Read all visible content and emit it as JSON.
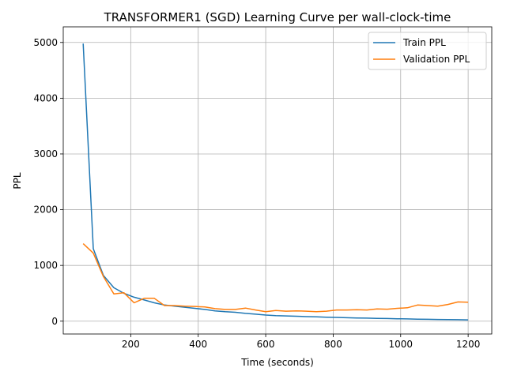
{
  "chart_data": {
    "type": "line",
    "title": "TRANSFORMER1 (SGD) Learning Curve per wall-clock-time",
    "xlabel": "Time (seconds)",
    "ylabel": "PPL",
    "xlim": [
      0,
      1270
    ],
    "ylim": [
      -230,
      5280
    ],
    "xticks": [
      200,
      400,
      600,
      800,
      1000,
      1200
    ],
    "yticks": [
      0,
      1000,
      2000,
      3000,
      4000,
      5000
    ],
    "grid": true,
    "legend_position": "top-right",
    "series": [
      {
        "name": "Train PPL",
        "color": "#1f77b4",
        "x": [
          59,
          89,
          119,
          150,
          180,
          210,
          240,
          270,
          300,
          330,
          360,
          390,
          420,
          450,
          480,
          510,
          540,
          570,
          600,
          630,
          660,
          690,
          720,
          750,
          780,
          810,
          840,
          870,
          900,
          930,
          960,
          990,
          1020,
          1050,
          1080,
          1110,
          1140,
          1170,
          1200
        ],
        "y": [
          4980,
          1300,
          820,
          600,
          500,
          430,
          380,
          330,
          290,
          270,
          250,
          230,
          210,
          185,
          170,
          160,
          140,
          125,
          110,
          100,
          95,
          88,
          82,
          78,
          72,
          68,
          62,
          58,
          55,
          50,
          47,
          43,
          40,
          37,
          34,
          31,
          28,
          26,
          24
        ]
      },
      {
        "name": "Validation PPL",
        "color": "#ff7f0e",
        "x": [
          59,
          89,
          119,
          150,
          180,
          210,
          240,
          270,
          300,
          330,
          360,
          390,
          420,
          450,
          480,
          510,
          540,
          570,
          600,
          630,
          660,
          690,
          720,
          750,
          780,
          810,
          840,
          870,
          900,
          930,
          960,
          990,
          1020,
          1050,
          1080,
          1110,
          1140,
          1170,
          1200
        ],
        "y": [
          1390,
          1220,
          800,
          490,
          510,
          330,
          410,
          410,
          280,
          280,
          270,
          265,
          255,
          225,
          210,
          210,
          235,
          200,
          170,
          190,
          180,
          185,
          180,
          170,
          180,
          200,
          200,
          205,
          200,
          220,
          215,
          230,
          240,
          290,
          280,
          270,
          300,
          345,
          340
        ]
      }
    ]
  }
}
